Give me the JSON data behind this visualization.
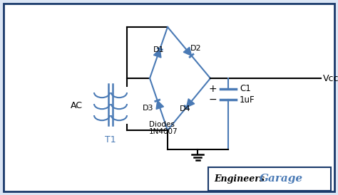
{
  "bg_color": "#ffffff",
  "border_color": "#1a3a6b",
  "wire_color": "#000000",
  "diode_color": "#4a7ab5",
  "transformer_color": "#4a7ab5",
  "text_color": "#000000",
  "label_color": "#4a7ab5",
  "fig_bg": "#dce6f5",
  "vcc_label": "Vcc",
  "ac_label": "AC",
  "t1_label": "T1",
  "d1_label": "D1",
  "d2_label": "D2",
  "d3_label": "D3",
  "d4_label": "D4",
  "diode_type_line1": "Diodes",
  "diode_type_line2": "1N4007",
  "cap_label": "C1",
  "cap_value": "1uF",
  "logo_border": "#1a3a6b",
  "logo_text1": "Engineers",
  "logo_text2": "Garage",
  "logo_color1": "#000000",
  "logo_color2": "#4a7ab5"
}
